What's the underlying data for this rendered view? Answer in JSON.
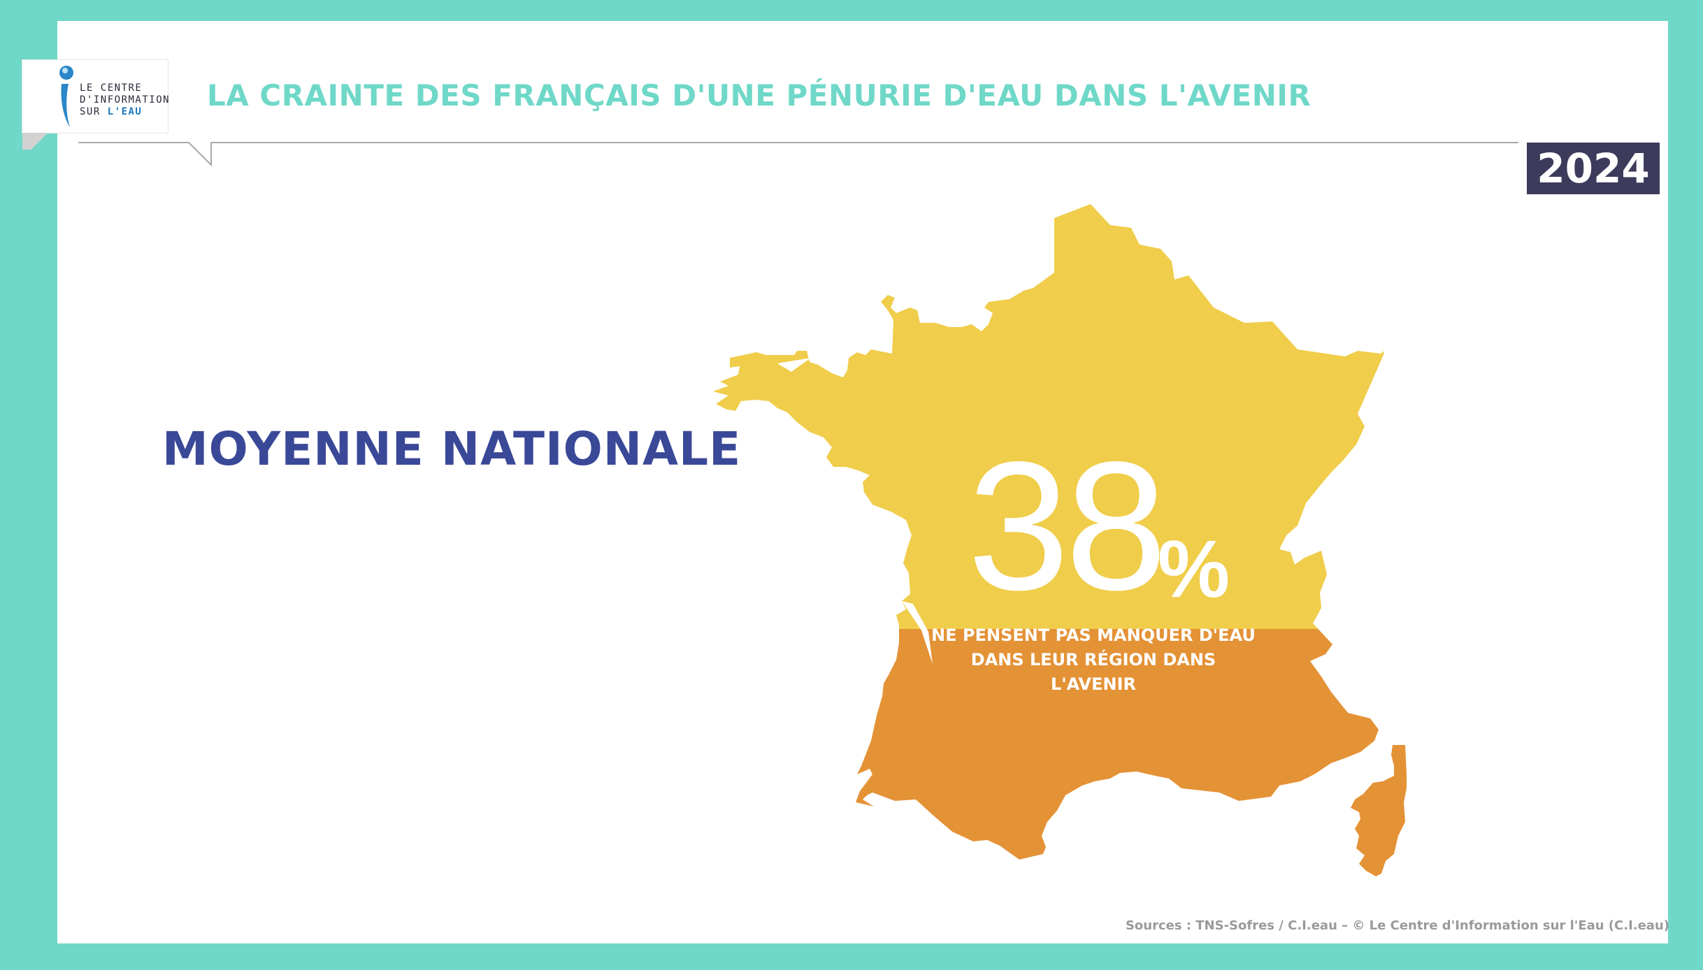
{
  "logo": {
    "line1": "LE CENTRE",
    "line2": "D'INFORMATION",
    "line3_prefix": "SUR ",
    "line3_highlight": "L'EAU"
  },
  "header": {
    "title": "LA CRAINTE DES FRANÇAIS D'UNE PÉNURIE D'EAU DANS L'AVENIR",
    "year": "2024"
  },
  "main": {
    "label": "MOYENNE NATIONALE",
    "value": "38",
    "unit": "%",
    "caption": "NE PENSENT PAS MANQUER D'EAU DANS LEUR RÉGION DANS L'AVENIR",
    "fill_fraction": 0.38
  },
  "footer": {
    "sources": "Sources : TNS-Sofres / C.I.eau – © Le Centre d'Information sur l'Eau (C.I.eau)"
  },
  "colors": {
    "frame": "#6fd8c8",
    "title": "#6fd8c8",
    "map_upper": "#f0cd4a",
    "map_lower": "#e49236",
    "label": "#3a4898",
    "badge": "#3c3b5c"
  }
}
